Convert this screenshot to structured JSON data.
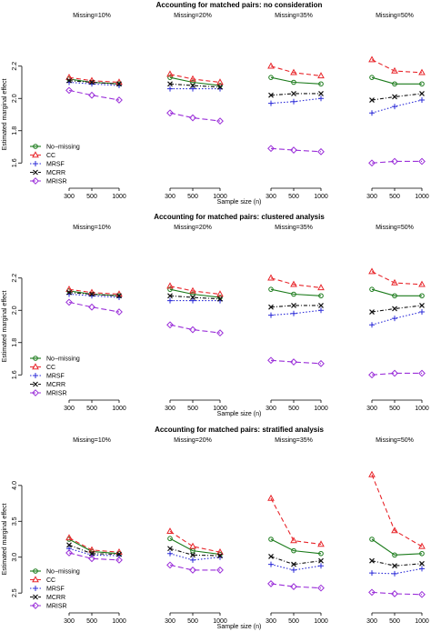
{
  "series_styles": [
    {
      "name": "No−missing",
      "color": "#1a7a1a",
      "dash": "",
      "marker": "circle"
    },
    {
      "name": "CC",
      "color": "#e8262b",
      "dash": "5,3",
      "marker": "triangle"
    },
    {
      "name": "MRSF",
      "color": "#2b2bd8",
      "dash": "1.5,2",
      "marker": "plus"
    },
    {
      "name": "MCRR",
      "color": "#111111",
      "dash": "4,2,1,2",
      "marker": "cross"
    },
    {
      "name": "MRISR",
      "color": "#9b30d9",
      "dash": "6,3",
      "marker": "diamond"
    }
  ],
  "chart_data": [
    {
      "type": "line",
      "title": "Accounting for matched pairs: no consideration",
      "ylabel": "Estimated marginal effect",
      "xlabel": "Sample size (n)",
      "x": [
        "300",
        "500",
        "1000"
      ],
      "ylim": [
        1.5,
        2.3
      ],
      "yticks": [
        "1.6",
        "1.8",
        "2.0",
        "2.2"
      ],
      "legend_position": "lower-left",
      "panels": [
        {
          "label": "Missing=10%",
          "series": [
            {
              "name": "No−missing",
              "values": [
                2.12,
                2.1,
                2.09
              ]
            },
            {
              "name": "CC",
              "values": [
                2.13,
                2.11,
                2.1
              ]
            },
            {
              "name": "MRSF",
              "values": [
                2.1,
                2.09,
                2.08
              ]
            },
            {
              "name": "MCRR",
              "values": [
                2.11,
                2.1,
                2.09
              ]
            },
            {
              "name": "MRISR",
              "values": [
                2.05,
                2.02,
                1.99
              ]
            }
          ]
        },
        {
          "label": "Missing=20%",
          "series": [
            {
              "name": "No−missing",
              "values": [
                2.13,
                2.1,
                2.08
              ]
            },
            {
              "name": "CC",
              "values": [
                2.15,
                2.12,
                2.1
              ]
            },
            {
              "name": "MRSF",
              "values": [
                2.06,
                2.06,
                2.06
              ]
            },
            {
              "name": "MCRR",
              "values": [
                2.09,
                2.08,
                2.07
              ]
            },
            {
              "name": "MRISR",
              "values": [
                1.91,
                1.88,
                1.86
              ]
            }
          ]
        },
        {
          "label": "Missing=35%",
          "series": [
            {
              "name": "No−missing",
              "values": [
                2.13,
                2.1,
                2.09
              ]
            },
            {
              "name": "CC",
              "values": [
                2.2,
                2.16,
                2.14
              ]
            },
            {
              "name": "MRSF",
              "values": [
                1.97,
                1.98,
                2.0
              ]
            },
            {
              "name": "MCRR",
              "values": [
                2.02,
                2.03,
                2.03
              ]
            },
            {
              "name": "MRISR",
              "values": [
                1.69,
                1.68,
                1.67
              ]
            }
          ]
        },
        {
          "label": "Missing=50%",
          "series": [
            {
              "name": "No−missing",
              "values": [
                2.13,
                2.09,
                2.09
              ]
            },
            {
              "name": "CC",
              "values": [
                2.24,
                2.17,
                2.16
              ]
            },
            {
              "name": "MRSF",
              "values": [
                1.91,
                1.95,
                1.99
              ]
            },
            {
              "name": "MCRR",
              "values": [
                1.99,
                2.01,
                2.03
              ]
            },
            {
              "name": "MRISR",
              "values": [
                1.6,
                1.61,
                1.61
              ]
            }
          ]
        }
      ]
    },
    {
      "type": "line",
      "title": "Accounting for matched pairs: clustered analysis",
      "ylabel": "Estimated marginal effect",
      "xlabel": "Sample size (n)",
      "x": [
        "300",
        "500",
        "1000"
      ],
      "ylim": [
        1.5,
        2.3
      ],
      "yticks": [
        "1.6",
        "1.8",
        "2.0",
        "2.2"
      ],
      "legend_position": "lower-left",
      "panels": [
        {
          "label": "Missing=10%",
          "series": [
            {
              "name": "No−missing",
              "values": [
                2.12,
                2.1,
                2.09
              ]
            },
            {
              "name": "CC",
              "values": [
                2.13,
                2.11,
                2.1
              ]
            },
            {
              "name": "MRSF",
              "values": [
                2.1,
                2.09,
                2.08
              ]
            },
            {
              "name": "MCRR",
              "values": [
                2.11,
                2.1,
                2.09
              ]
            },
            {
              "name": "MRISR",
              "values": [
                2.05,
                2.02,
                1.99
              ]
            }
          ]
        },
        {
          "label": "Missing=20%",
          "series": [
            {
              "name": "No−missing",
              "values": [
                2.13,
                2.1,
                2.08
              ]
            },
            {
              "name": "CC",
              "values": [
                2.15,
                2.12,
                2.1
              ]
            },
            {
              "name": "MRSF",
              "values": [
                2.06,
                2.06,
                2.06
              ]
            },
            {
              "name": "MCRR",
              "values": [
                2.09,
                2.08,
                2.07
              ]
            },
            {
              "name": "MRISR",
              "values": [
                1.91,
                1.88,
                1.86
              ]
            }
          ]
        },
        {
          "label": "Missing=35%",
          "series": [
            {
              "name": "No−missing",
              "values": [
                2.13,
                2.1,
                2.09
              ]
            },
            {
              "name": "CC",
              "values": [
                2.2,
                2.16,
                2.14
              ]
            },
            {
              "name": "MRSF",
              "values": [
                1.97,
                1.98,
                2.0
              ]
            },
            {
              "name": "MCRR",
              "values": [
                2.02,
                2.03,
                2.03
              ]
            },
            {
              "name": "MRISR",
              "values": [
                1.69,
                1.68,
                1.67
              ]
            }
          ]
        },
        {
          "label": "Missing=50%",
          "series": [
            {
              "name": "No−missing",
              "values": [
                2.13,
                2.09,
                2.09
              ]
            },
            {
              "name": "CC",
              "values": [
                2.24,
                2.17,
                2.16
              ]
            },
            {
              "name": "MRSF",
              "values": [
                1.91,
                1.95,
                1.99
              ]
            },
            {
              "name": "MCRR",
              "values": [
                1.99,
                2.01,
                2.03
              ]
            },
            {
              "name": "MRISR",
              "values": [
                1.6,
                1.61,
                1.61
              ]
            }
          ]
        }
      ]
    },
    {
      "type": "line",
      "title": "Accounting for matched pairs: stratified analysis",
      "ylabel": "Estimated marginal effect",
      "xlabel": "Sample size (n)",
      "x": [
        "300",
        "500",
        "1000"
      ],
      "ylim": [
        2.35,
        4.15
      ],
      "yticks": [
        "2.5",
        "3.0",
        "3.5",
        "4.0"
      ],
      "legend_position": "lower-left",
      "panels": [
        {
          "label": "Missing=10%",
          "series": [
            {
              "name": "No−missing",
              "values": [
                3.25,
                3.08,
                3.05
              ]
            },
            {
              "name": "CC",
              "values": [
                3.27,
                3.1,
                3.07
              ]
            },
            {
              "name": "MRSF",
              "values": [
                3.12,
                3.03,
                3.02
              ]
            },
            {
              "name": "MCRR",
              "values": [
                3.17,
                3.05,
                3.04
              ]
            },
            {
              "name": "MRISR",
              "values": [
                3.06,
                2.98,
                2.96
              ]
            }
          ]
        },
        {
          "label": "Missing=20%",
          "series": [
            {
              "name": "No−missing",
              "values": [
                3.26,
                3.09,
                3.04
              ]
            },
            {
              "name": "CC",
              "values": [
                3.36,
                3.15,
                3.07
              ]
            },
            {
              "name": "MRSF",
              "values": [
                3.05,
                2.96,
                3.0
              ]
            },
            {
              "name": "MCRR",
              "values": [
                3.12,
                3.03,
                3.02
              ]
            },
            {
              "name": "MRISR",
              "values": [
                2.89,
                2.82,
                2.82
              ]
            }
          ]
        },
        {
          "label": "Missing=35%",
          "series": [
            {
              "name": "No−missing",
              "values": [
                3.25,
                3.09,
                3.05
              ]
            },
            {
              "name": "CC",
              "values": [
                3.82,
                3.23,
                3.18
              ]
            },
            {
              "name": "MRSF",
              "values": [
                2.9,
                2.82,
                2.88
              ]
            },
            {
              "name": "MCRR",
              "values": [
                3.01,
                2.9,
                2.95
              ]
            },
            {
              "name": "MRISR",
              "values": [
                2.63,
                2.59,
                2.57
              ]
            }
          ]
        },
        {
          "label": "Missing=50%",
          "series": [
            {
              "name": "No−missing",
              "values": [
                3.25,
                3.03,
                3.05
              ]
            },
            {
              "name": "CC",
              "values": [
                4.15,
                3.37,
                3.15
              ]
            },
            {
              "name": "MRSF",
              "values": [
                2.78,
                2.77,
                2.84
              ]
            },
            {
              "name": "MCRR",
              "values": [
                2.95,
                2.88,
                2.91
              ]
            },
            {
              "name": "MRISR",
              "values": [
                2.51,
                2.49,
                2.48
              ]
            }
          ]
        }
      ]
    }
  ]
}
